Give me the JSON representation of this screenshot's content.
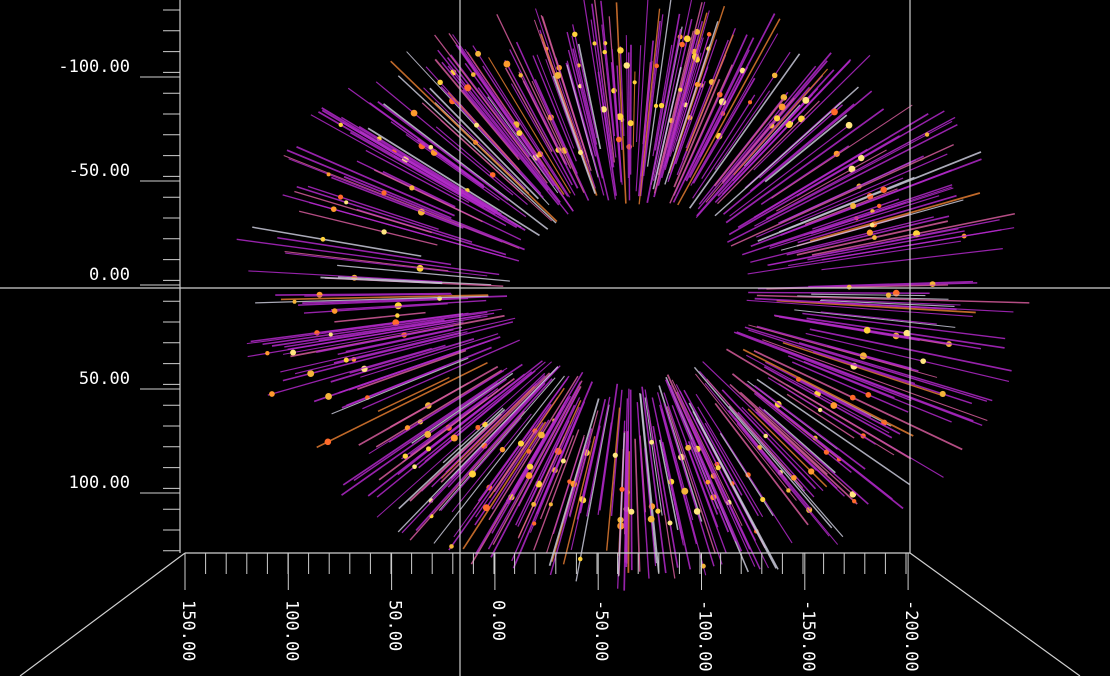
{
  "axes": {
    "vertical_ticks": [
      {
        "value": -100,
        "label": "-100.00"
      },
      {
        "value": -50,
        "label": "-50.00"
      },
      {
        "value": 0,
        "label": "0.00"
      },
      {
        "value": 50,
        "label": "50.00"
      },
      {
        "value": 100,
        "label": "100.00"
      }
    ],
    "horizontal_ticks": [
      {
        "value": 150,
        "label": "150.00"
      },
      {
        "value": 100,
        "label": "100.00"
      },
      {
        "value": 50,
        "label": "50.00"
      },
      {
        "value": 0,
        "label": "0.00"
      },
      {
        "value": -50,
        "label": "-50.00"
      },
      {
        "value": -100,
        "label": "-100.00"
      },
      {
        "value": -150,
        "label": "-150.00"
      },
      {
        "value": -200,
        "label": "-200.00"
      }
    ]
  }
}
